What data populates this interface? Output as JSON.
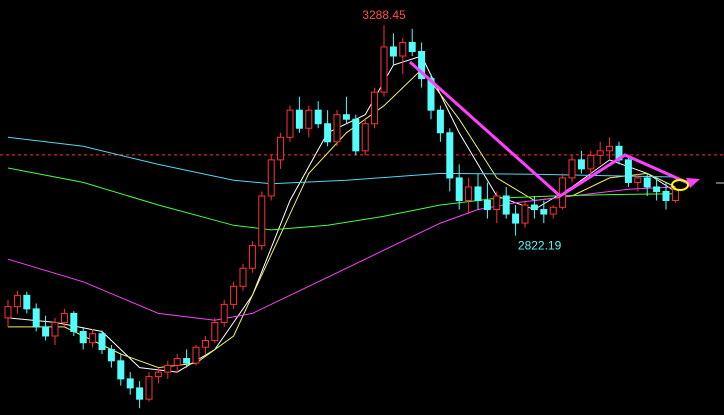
{
  "chart_data": {
    "type": "candlestick",
    "up_color": "#ff3232",
    "down_color": "#54fcfc",
    "ylim": [
      2425,
      3344
    ],
    "ref_line": 3001,
    "ref_color": "#ff3232",
    "candles": [
      [
        2640,
        2680,
        2620,
        2665
      ],
      [
        2665,
        2700,
        2650,
        2690
      ],
      [
        2690,
        2698,
        2650,
        2660
      ],
      [
        2660,
        2672,
        2610,
        2620
      ],
      [
        2620,
        2645,
        2590,
        2600
      ],
      [
        2600,
        2640,
        2580,
        2630
      ],
      [
        2630,
        2660,
        2620,
        2650
      ],
      [
        2650,
        2655,
        2600,
        2610
      ],
      [
        2610,
        2620,
        2570,
        2585
      ],
      [
        2585,
        2615,
        2575,
        2605
      ],
      [
        2605,
        2612,
        2560,
        2570
      ],
      [
        2570,
        2580,
        2530,
        2545
      ],
      [
        2545,
        2560,
        2490,
        2505
      ],
      [
        2505,
        2520,
        2470,
        2485
      ],
      [
        2485,
        2500,
        2440,
        2460
      ],
      [
        2460,
        2520,
        2455,
        2510
      ],
      [
        2510,
        2530,
        2495,
        2520
      ],
      [
        2520,
        2545,
        2505,
        2535
      ],
      [
        2535,
        2560,
        2520,
        2550
      ],
      [
        2550,
        2570,
        2530,
        2540
      ],
      [
        2540,
        2580,
        2535,
        2575
      ],
      [
        2575,
        2600,
        2560,
        2590
      ],
      [
        2590,
        2640,
        2585,
        2630
      ],
      [
        2630,
        2680,
        2620,
        2670
      ],
      [
        2670,
        2720,
        2660,
        2710
      ],
      [
        2710,
        2760,
        2700,
        2750
      ],
      [
        2750,
        2810,
        2740,
        2800
      ],
      [
        2800,
        2920,
        2790,
        2910
      ],
      [
        2910,
        3000,
        2900,
        2990
      ],
      [
        2990,
        3050,
        2970,
        3040
      ],
      [
        3040,
        3110,
        3030,
        3100
      ],
      [
        3100,
        3130,
        3050,
        3060
      ],
      [
        3060,
        3110,
        3040,
        3100
      ],
      [
        3100,
        3120,
        3060,
        3070
      ],
      [
        3070,
        3100,
        3020,
        3030
      ],
      [
        3030,
        3100,
        3020,
        3090
      ],
      [
        3090,
        3130,
        3070,
        3080
      ],
      [
        3080,
        3090,
        3000,
        3010
      ],
      [
        3010,
        3080,
        3000,
        3070
      ],
      [
        3070,
        3150,
        3060,
        3140
      ],
      [
        3140,
        3288.45,
        3130,
        3240
      ],
      [
        3240,
        3270,
        3200,
        3220
      ],
      [
        3220,
        3260,
        3180,
        3250
      ],
      [
        3250,
        3280,
        3220,
        3230
      ],
      [
        3230,
        3250,
        3150,
        3170
      ],
      [
        3170,
        3180,
        3080,
        3100
      ],
      [
        3100,
        3110,
        3030,
        3050
      ],
      [
        3050,
        3060,
        2920,
        2950
      ],
      [
        2950,
        2980,
        2880,
        2900
      ],
      [
        2900,
        2950,
        2870,
        2930
      ],
      [
        2930,
        2960,
        2880,
        2900
      ],
      [
        2900,
        2940,
        2860,
        2880
      ],
      [
        2880,
        2920,
        2850,
        2910
      ],
      [
        2910,
        2930,
        2860,
        2870
      ],
      [
        2870,
        2890,
        2822.19,
        2850
      ],
      [
        2850,
        2900,
        2840,
        2890
      ],
      [
        2890,
        2910,
        2860,
        2880
      ],
      [
        2880,
        2900,
        2850,
        2870
      ],
      [
        2870,
        2890,
        2860,
        2885
      ],
      [
        2885,
        2960,
        2880,
        2950
      ],
      [
        2950,
        3000,
        2940,
        2990
      ],
      [
        2990,
        3010,
        2960,
        2970
      ],
      [
        2970,
        3010,
        2950,
        3000
      ],
      [
        3000,
        3030,
        2980,
        3010
      ],
      [
        3010,
        3040,
        2990,
        3020
      ],
      [
        3020,
        3030,
        2980,
        2990
      ],
      [
        2990,
        3000,
        2930,
        2940
      ],
      [
        2940,
        2960,
        2920,
        2950
      ],
      [
        2950,
        2960,
        2910,
        2930
      ],
      [
        2930,
        2950,
        2900,
        2920
      ],
      [
        2920,
        2940,
        2880,
        2900
      ],
      [
        2900,
        2930,
        2895,
        2925
      ]
    ],
    "series": [
      {
        "color": "#ffffff",
        "x": [
          0,
          5,
          10,
          14,
          18,
          22,
          26,
          30,
          34,
          38,
          41,
          44,
          48,
          52,
          56,
          60,
          64,
          68,
          71
        ],
        "values": [
          2640,
          2630,
          2610,
          2530,
          2520,
          2570,
          2690,
          2900,
          3050,
          3090,
          3200,
          3220,
          3050,
          2910,
          2880,
          2930,
          2990,
          2960,
          2920
        ]
      },
      {
        "color": "#f0f060",
        "x": [
          0,
          6,
          12,
          16,
          20,
          24,
          28,
          32,
          36,
          40,
          44,
          48,
          52,
          56,
          60,
          64,
          68,
          71
        ],
        "values": [
          2620,
          2620,
          2560,
          2530,
          2540,
          2600,
          2780,
          2960,
          3050,
          3110,
          3190,
          3080,
          2950,
          2900,
          2910,
          2950,
          2960,
          2930
        ]
      },
      {
        "color": "#ff40ff",
        "x": [
          0,
          8,
          16,
          22,
          26,
          30,
          34,
          38,
          42,
          46,
          50,
          54,
          58,
          62,
          66,
          71
        ],
        "values": [
          2770,
          2720,
          2650,
          2635,
          2650,
          2690,
          2730,
          2770,
          2810,
          2850,
          2880,
          2895,
          2905,
          2915,
          2925,
          2930
        ]
      },
      {
        "color": "#40ff40",
        "x": [
          0,
          8,
          16,
          24,
          28,
          34,
          40,
          46,
          52,
          58,
          64,
          71
        ],
        "values": [
          2972,
          2940,
          2890,
          2845,
          2835,
          2845,
          2865,
          2890,
          2905,
          2910,
          2913,
          2915
        ]
      },
      {
        "color": "#50d8f0",
        "x": [
          0,
          8,
          16,
          24,
          28,
          36,
          46,
          56,
          64,
          71
        ],
        "values": [
          3040,
          3020,
          2980,
          2945,
          2937,
          2945,
          2960,
          2958,
          2955,
          2952
        ]
      }
    ]
  }
}
